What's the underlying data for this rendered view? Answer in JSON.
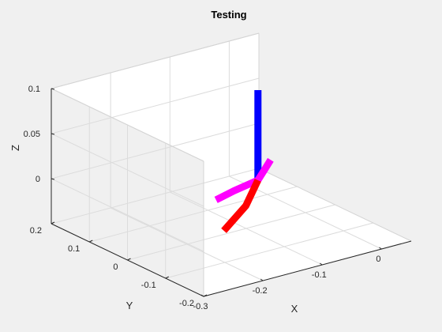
{
  "chart_data": {
    "type": "3d-line",
    "title": "Testing",
    "xlabel": "X",
    "ylabel": "Y",
    "zlabel": "Z",
    "xlim": [
      -0.3,
      0.05
    ],
    "ylim": [
      -0.2,
      0.2
    ],
    "zlim": [
      -0.05,
      0.1
    ],
    "x_ticks": [
      "-0.3",
      "-0.2",
      "-0.1",
      "0"
    ],
    "y_ticks": [
      "0.2",
      "0.1",
      "0",
      "-0.1",
      "-0.2"
    ],
    "z_ticks": [
      "0.1",
      "0.05",
      "0"
    ],
    "grid": true,
    "box": true,
    "view": "default 3-D view (azimuth -37.5, elevation 30)",
    "series": [
      {
        "color": "#0000ff",
        "points": [
          [
            -0.08,
            0.0,
            0.0
          ],
          [
            -0.08,
            0.0,
            0.1
          ]
        ]
      },
      {
        "color": "#ff00ff",
        "points": [
          [
            -0.17,
            -0.03,
            0.0
          ],
          [
            -0.13,
            -0.015,
            0.0
          ],
          [
            -0.08,
            0.0,
            0.0
          ],
          [
            -0.05,
            0.03,
            0.0
          ],
          [
            -0.02,
            0.06,
            0.0
          ]
        ]
      },
      {
        "color": "#ff0000",
        "points": [
          [
            -0.08,
            0.0,
            0.0
          ],
          [
            -0.11,
            -0.015,
            -0.02
          ],
          [
            -0.16,
            -0.035,
            -0.035
          ]
        ]
      }
    ]
  }
}
